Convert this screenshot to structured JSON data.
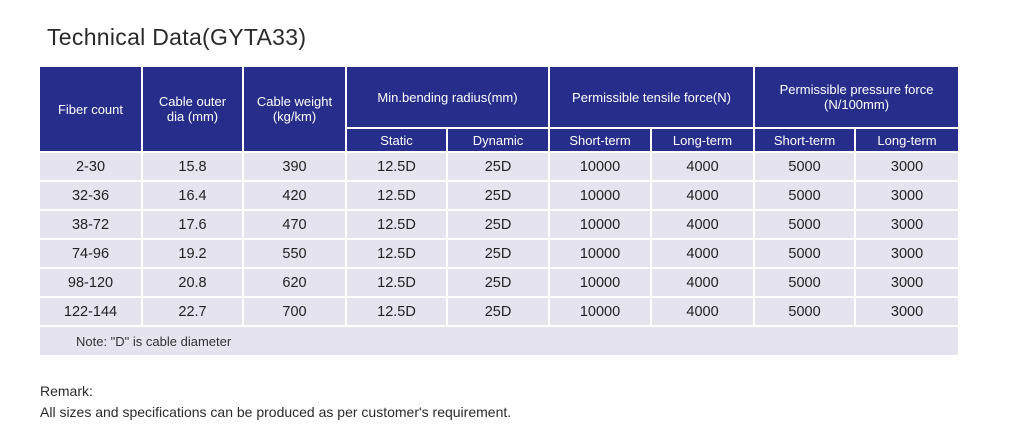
{
  "title": "Technical Data(GYTA33)",
  "table": {
    "headers": {
      "fiber_count": "Fiber count",
      "cable_outer_dia": "Cable outer\ndia (mm)",
      "cable_weight": "Cable weight\n(kg/km)",
      "bending_radius": "Min.bending radius(mm)",
      "tensile_force": "Permissible tensile force(N)",
      "pressure_force": "Permissible pressure force\n(N/100mm)",
      "static": "Static",
      "dynamic": "Dynamic",
      "tensile_short": "Short-term",
      "tensile_long": "Long-term",
      "pressure_short": "Short-term",
      "pressure_long": "Long-term"
    },
    "rows": [
      [
        "2-30",
        "15.8",
        "390",
        "12.5D",
        "25D",
        "10000",
        "4000",
        "5000",
        "3000"
      ],
      [
        "32-36",
        "16.4",
        "420",
        "12.5D",
        "25D",
        "10000",
        "4000",
        "5000",
        "3000"
      ],
      [
        "38-72",
        "17.6",
        "470",
        "12.5D",
        "25D",
        "10000",
        "4000",
        "5000",
        "3000"
      ],
      [
        "74-96",
        "19.2",
        "550",
        "12.5D",
        "25D",
        "10000",
        "4000",
        "5000",
        "3000"
      ],
      [
        "98-120",
        "20.8",
        "620",
        "12.5D",
        "25D",
        "10000",
        "4000",
        "5000",
        "3000"
      ],
      [
        "122-144",
        "22.7",
        "700",
        "12.5D",
        "25D",
        "10000",
        "4000",
        "5000",
        "3000"
      ]
    ],
    "note": "Note: \"D\" is cable diameter"
  },
  "remark": {
    "label": "Remark:",
    "text": "All sizes and specifications can be produced as per customer's requirement."
  },
  "colors": {
    "header_bg": "#262d8a",
    "row_bg": "#e4e3ee"
  }
}
